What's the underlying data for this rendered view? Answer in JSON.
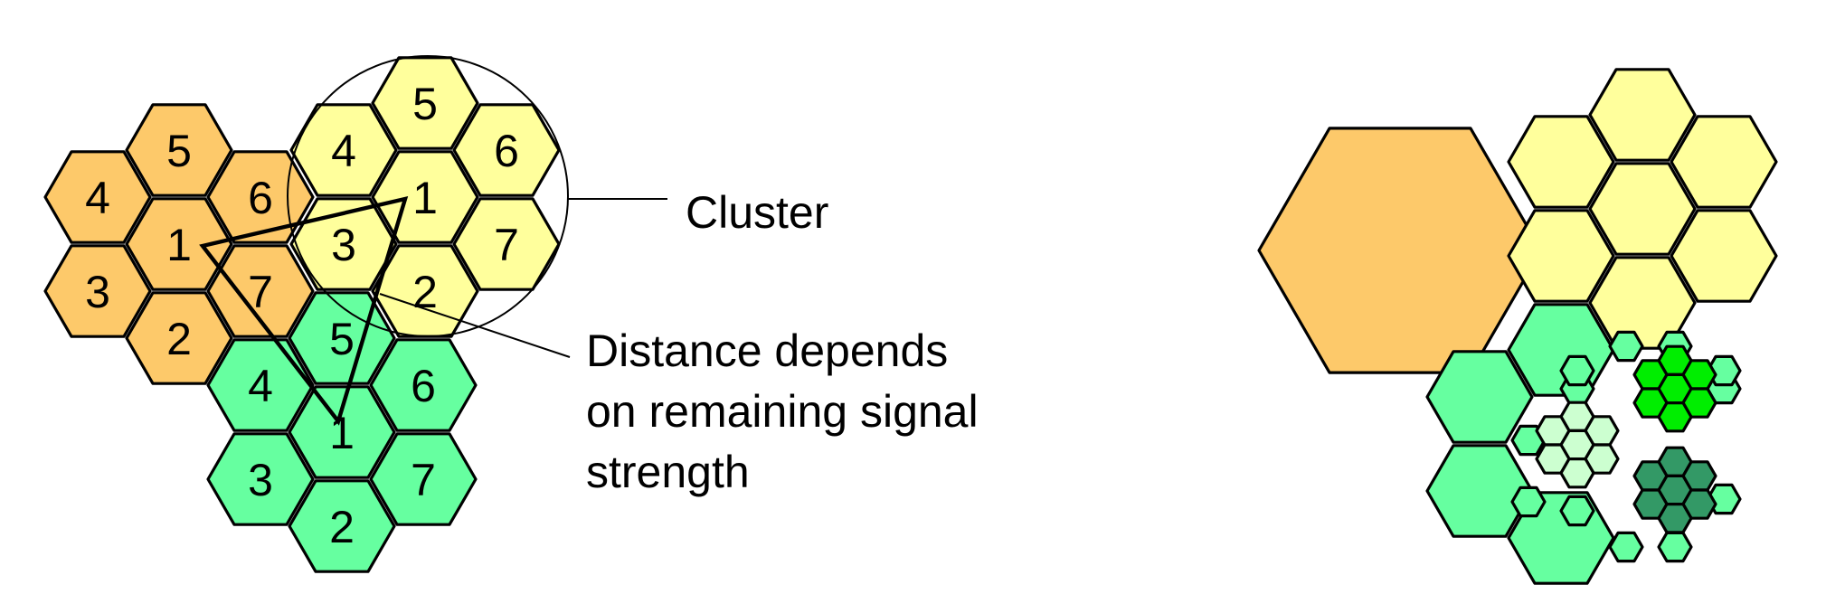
{
  "colors": {
    "orange": "#FDC96A",
    "yellow": "#FFFF9C",
    "green": "#66FFA0",
    "pale_green": "#CCFFD0",
    "bright_green": "#00EE00",
    "dark_green": "#339966"
  },
  "clusters": [
    {
      "name": "orange",
      "cells": [
        "5",
        "4",
        "6",
        "1",
        "3",
        "7",
        "2"
      ]
    },
    {
      "name": "yellow",
      "cells": [
        "5",
        "4",
        "6",
        "1",
        "3",
        "7",
        "2"
      ]
    },
    {
      "name": "green",
      "cells": [
        "5",
        "4",
        "6",
        "1",
        "3",
        "7",
        "2"
      ]
    }
  ],
  "annotations": {
    "cluster": "Cluster",
    "distance_line1": "Distance depends",
    "distance_line2": "on remaining signal",
    "distance_line3": "strength"
  }
}
